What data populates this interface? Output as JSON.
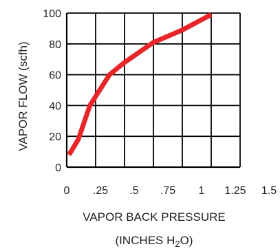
{
  "chart_data": {
    "type": "line",
    "xlabel": "VAPOR BACK PRESSURE",
    "xlabel_line2": {
      "prefix": "(INCHES H",
      "sub": "2",
      "suffix": "O)"
    },
    "ylabel": "VAPOR FLOW (scfh)",
    "xlim": [
      0,
      1.5
    ],
    "ylim": [
      0,
      100
    ],
    "x_ticks": [
      0,
      0.25,
      0.5,
      0.75,
      1,
      1.25,
      1.5
    ],
    "x_tick_labels": [
      "0",
      ".25",
      ".5",
      ".75",
      "1",
      "1.25",
      "1.5"
    ],
    "y_ticks": [
      0,
      20,
      40,
      60,
      80,
      100
    ],
    "y_tick_labels": [
      "0",
      "20",
      "40",
      "60",
      "80",
      "100"
    ],
    "grid": true,
    "line_color": "#e8262a",
    "grid_color": "#000000",
    "series": [
      {
        "x": [
          0.02,
          0.1,
          0.2,
          0.37,
          0.5,
          0.75,
          1.0,
          1.25
        ],
        "y": [
          8,
          18,
          40,
          60,
          68,
          81,
          89,
          99
        ]
      }
    ]
  }
}
